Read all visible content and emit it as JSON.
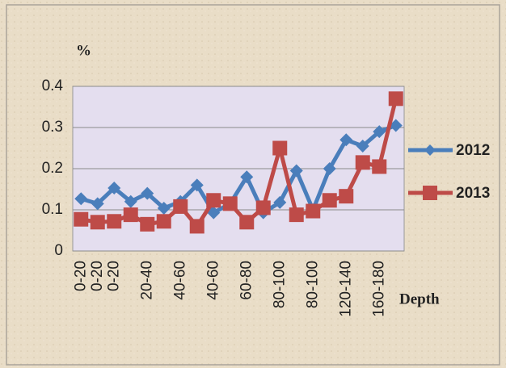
{
  "chart_data": {
    "type": "line",
    "y_label": "%",
    "x_label": "Depth",
    "categories": [
      "0-20",
      "0-20",
      "0-20",
      null,
      "20-40",
      null,
      "40-60",
      null,
      "40-60",
      null,
      "60-80",
      null,
      "80-100",
      null,
      "80-100",
      null,
      "120-140",
      null,
      "160-180",
      null
    ],
    "series": [
      {
        "name": "2012",
        "color": "#4a7ebb",
        "marker": "diamond",
        "values": [
          0.127,
          0.115,
          0.153,
          0.12,
          0.14,
          0.104,
          0.12,
          0.16,
          0.093,
          0.115,
          0.18,
          0.093,
          0.118,
          0.195,
          0.1,
          0.2,
          0.27,
          0.255,
          0.29,
          0.305
        ]
      },
      {
        "name": "2013",
        "color": "#be4b48",
        "marker": "square",
        "values": [
          0.077,
          0.07,
          0.072,
          0.088,
          0.065,
          0.072,
          0.108,
          0.06,
          0.123,
          0.115,
          0.07,
          0.105,
          0.25,
          0.088,
          0.097,
          0.123,
          0.133,
          0.215,
          0.205,
          0.37
        ]
      }
    ],
    "ylim": [
      0,
      0.4
    ],
    "yticks": [
      0,
      0.1,
      0.2,
      0.3,
      0.4
    ],
    "grid": true,
    "legend": "right"
  }
}
